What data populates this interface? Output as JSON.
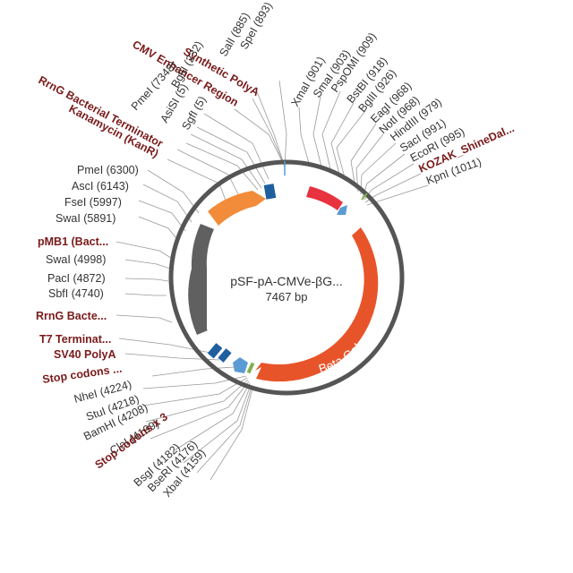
{
  "plasmid": {
    "name": "pSF-pA-CMVe-βG...",
    "size": "7467 bp"
  },
  "colors": {
    "backbone": "#555555",
    "beta_gal": "#e8542a",
    "kanr": "#f28c3a",
    "cmv": "#e8323f",
    "kozak": "#5a9bd4",
    "dark_blue": "#1f5f9e",
    "light_blue": "#5b9bd5",
    "pmb1": "#606060",
    "feature_label": "#7a1a1a",
    "site_label": "#333333"
  },
  "features": {
    "beta_gal": "Beta Galactosidase"
  },
  "labels_top": [
    {
      "text": "CMV Enhancer Region",
      "kind": "feature"
    },
    {
      "text": "Synthetic PolyA",
      "kind": "feature"
    },
    {
      "text": "SalI (885)",
      "kind": "site"
    },
    {
      "text": "SpeI (893)",
      "kind": "site"
    },
    {
      "text": "XmaI (901)",
      "kind": "site"
    },
    {
      "text": "SmaI (903)",
      "kind": "site"
    },
    {
      "text": "PspOMI (909)",
      "kind": "site"
    },
    {
      "text": "BstBI (918)",
      "kind": "site"
    },
    {
      "text": "BglII (926)",
      "kind": "site"
    },
    {
      "text": "BglII (232)",
      "kind": "site"
    },
    {
      "text": "SgfI (5)",
      "kind": "site"
    },
    {
      "text": "AsiSI (5)",
      "kind": "site"
    },
    {
      "text": "PmeI (7348)",
      "kind": "site"
    },
    {
      "text": "RrnG Bacterial Terminator",
      "kind": "feature"
    },
    {
      "text": "Kanamycin (KanR)",
      "kind": "feature"
    },
    {
      "text": "EagI (968)",
      "kind": "site"
    },
    {
      "text": "NotI (968)",
      "kind": "site"
    },
    {
      "text": "HindIII (979)",
      "kind": "site"
    },
    {
      "text": "SacI (991)",
      "kind": "site"
    },
    {
      "text": "EcoRI (995)",
      "kind": "site"
    },
    {
      "text": "KOZAK_ShineDal...",
      "kind": "feature"
    },
    {
      "text": "KpnI (1011)",
      "kind": "site"
    }
  ],
  "labels_left": [
    {
      "text": "PmeI (6300)",
      "kind": "site"
    },
    {
      "text": "AscI (6143)",
      "kind": "site"
    },
    {
      "text": "FseI (5997)",
      "kind": "site"
    },
    {
      "text": "SwaI (5891)",
      "kind": "site"
    },
    {
      "text": "pMB1 (Bact...",
      "kind": "feature"
    },
    {
      "text": "SwaI (4998)",
      "kind": "site"
    },
    {
      "text": "PacI (4872)",
      "kind": "site"
    },
    {
      "text": "SbfI (4740)",
      "kind": "site"
    },
    {
      "text": "RrnG Bacte...",
      "kind": "feature"
    },
    {
      "text": "T7 Terminat...",
      "kind": "feature"
    },
    {
      "text": "SV40 PolyA",
      "kind": "feature"
    },
    {
      "text": "Stop codons ...",
      "kind": "feature"
    }
  ],
  "labels_bottom": [
    {
      "text": "NheI (4224)",
      "kind": "site"
    },
    {
      "text": "StuI (4218)",
      "kind": "site"
    },
    {
      "text": "BamHI (4208)",
      "kind": "site"
    },
    {
      "text": "ClaI (4199)",
      "kind": "site"
    },
    {
      "text": "Stop codons x 3",
      "kind": "feature"
    },
    {
      "text": "BsgI (4182)",
      "kind": "site"
    },
    {
      "text": "BseRI (4176)",
      "kind": "site"
    },
    {
      "text": "XbaI (4159)",
      "kind": "site"
    }
  ]
}
